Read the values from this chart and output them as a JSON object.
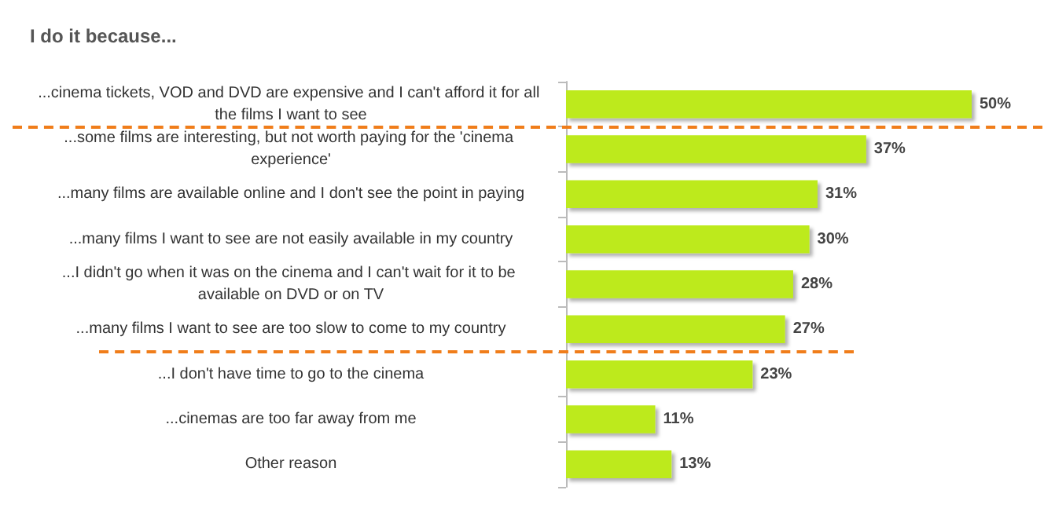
{
  "chart_data": {
    "type": "bar",
    "orientation": "horizontal",
    "title": "I do it because...",
    "categories": [
      "...cinema tickets, VOD and DVD are expensive and I can't afford it for all the films I want to see",
      "...some films are interesting, but not worth paying for the 'cinema experience'",
      "...many films are available online and I don't see the point in paying",
      "...many films I want to see are not easily available in my country",
      "...I didn't go when it was on the cinema and I can't wait for it to be available on DVD or on TV",
      "...many films I want to see are too slow to come to my country",
      "...I don't have time to go to the cinema",
      "...cinemas are too far away from me",
      "Other reason"
    ],
    "values": [
      50,
      37,
      31,
      30,
      28,
      27,
      23,
      11,
      13
    ],
    "value_labels": [
      "50%",
      "37%",
      "31%",
      "30%",
      "28%",
      "27%",
      "23%",
      "11%",
      "13%"
    ],
    "color": "#bdea1e"
  }
}
